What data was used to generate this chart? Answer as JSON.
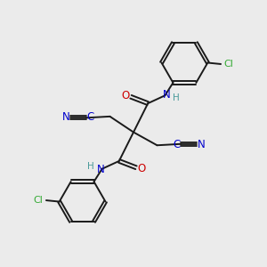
{
  "background_color": "#ebebeb",
  "bond_color": "#1a1a1a",
  "atom_colors": {
    "N": "#0000cc",
    "O": "#cc0000",
    "Cl": "#33aa33",
    "C_triple": "#0000cc",
    "H": "#4a9a9a"
  },
  "figsize": [
    3.0,
    3.0
  ],
  "dpi": 100
}
